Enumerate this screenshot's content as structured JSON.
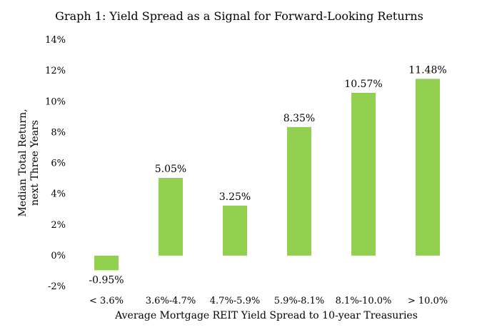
{
  "chart_data": {
    "type": "bar",
    "title": "Graph 1: Yield Spread as a Signal for Forward-Looking Returns",
    "xlabel": "Average Mortgage REIT Yield Spread to 10-year Treasuries",
    "ylabel_lines": [
      "Median Total Return,",
      "next Three Years"
    ],
    "categories": [
      "< 3.6%",
      "3.6%-4.7%",
      "4.7%-5.9%",
      "5.9%-8.1%",
      "8.1%-10.0%",
      "> 10.0%"
    ],
    "values": [
      -0.95,
      5.05,
      3.25,
      8.35,
      10.57,
      11.48
    ],
    "value_labels": [
      "-0.95%",
      "5.05%",
      "3.25%",
      "8.35%",
      "10.57%",
      "11.48%"
    ],
    "ylim": [
      -2,
      14
    ],
    "y_ticks": [
      -2,
      0,
      2,
      4,
      6,
      8,
      10,
      12,
      14
    ],
    "y_tick_labels": [
      "-2%",
      "0%",
      "2%",
      "4%",
      "6%",
      "8%",
      "10%",
      "12%",
      "14%"
    ],
    "bar_color": "#92D050",
    "grid": false,
    "legend": "none"
  }
}
